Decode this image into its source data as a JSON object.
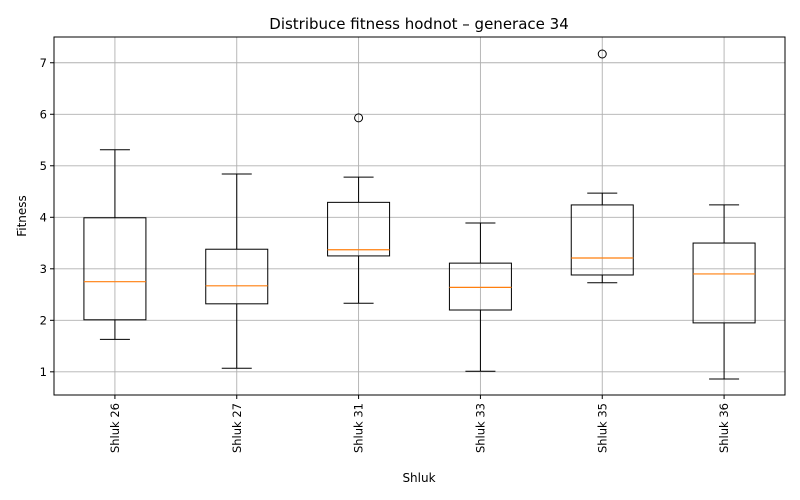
{
  "chart_data": {
    "type": "box",
    "title": "Distribuce fitness hodnot – generace 34",
    "xlabel": "Shluk",
    "ylabel": "Fitness",
    "ylim": [
      0.55,
      7.5
    ],
    "yticks": [
      "1",
      "2",
      "3",
      "4",
      "5",
      "6",
      "7"
    ],
    "grid": true,
    "categories": [
      "Shluk 26",
      "Shluk 27",
      "Shluk 31",
      "Shluk 33",
      "Shluk 35",
      "Shluk 36"
    ],
    "boxes": [
      {
        "whisker_low": 1.63,
        "q1": 2.01,
        "median": 2.75,
        "q3": 3.99,
        "whisker_high": 5.31,
        "outliers": []
      },
      {
        "whisker_low": 1.07,
        "q1": 2.32,
        "median": 2.67,
        "q3": 3.38,
        "whisker_high": 4.84,
        "outliers": []
      },
      {
        "whisker_low": 2.33,
        "q1": 3.25,
        "median": 3.37,
        "q3": 4.29,
        "whisker_high": 4.78,
        "outliers": [
          5.93
        ]
      },
      {
        "whisker_low": 1.01,
        "q1": 2.2,
        "median": 2.64,
        "q3": 3.11,
        "whisker_high": 3.89,
        "outliers": []
      },
      {
        "whisker_low": 2.73,
        "q1": 2.88,
        "median": 3.21,
        "q3": 4.24,
        "whisker_high": 4.47,
        "outliers": [
          7.17
        ]
      },
      {
        "whisker_low": 0.86,
        "q1": 1.95,
        "median": 2.9,
        "q3": 3.5,
        "whisker_high": 4.24,
        "outliers": []
      }
    ],
    "colors": {
      "median": "#ff7f0e",
      "box": "#000000",
      "grid": "#b0b0b0"
    }
  }
}
